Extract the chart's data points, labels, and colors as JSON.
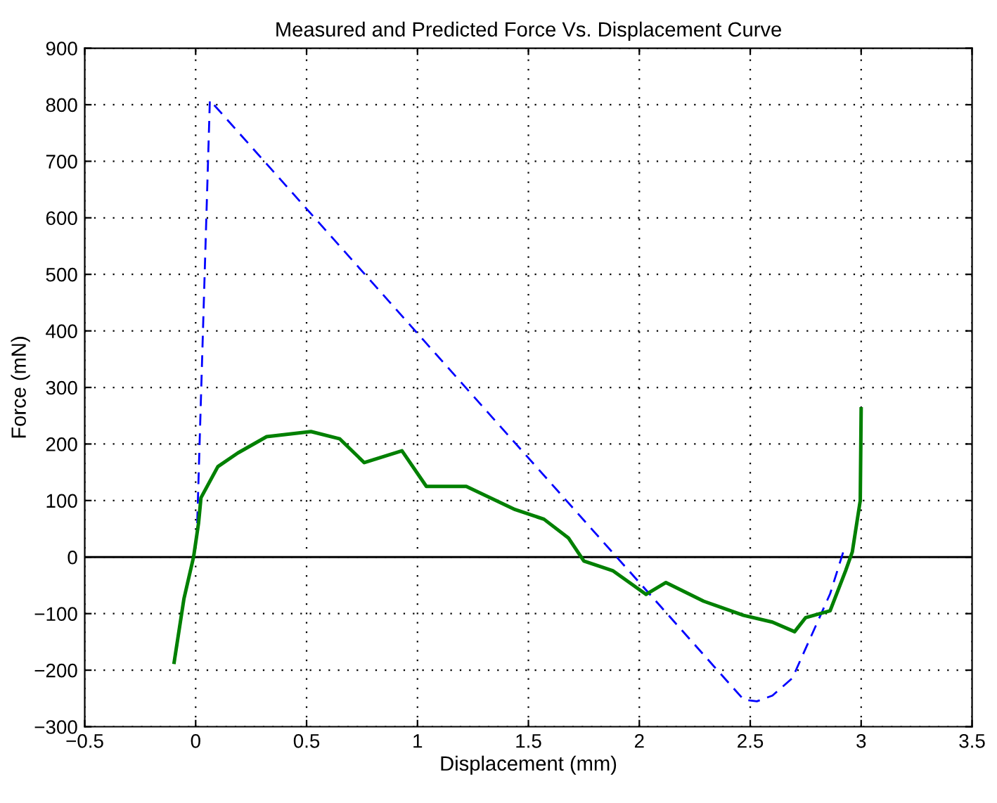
{
  "chart_data": {
    "type": "line",
    "title": "Measured and Predicted Force Vs. Displacement Curve",
    "xlabel": "Displacement (mm)",
    "ylabel": "Force (mN)",
    "series": [
      {
        "color": "#0000ff",
        "line_style": "dashed",
        "x": [
          0.007,
          0.064,
          2.42,
          2.47,
          2.53,
          2.6,
          2.69,
          2.86,
          2.92
        ],
        "values": [
          60,
          808,
          -230,
          -252,
          -255,
          -245,
          -214,
          -65,
          10
        ]
      },
      {
        "color": "#008000",
        "line_style": "solid",
        "x": [
          -0.097,
          -0.053,
          -0.009,
          0.013,
          0.024,
          0.1,
          0.19,
          0.32,
          0.52,
          0.65,
          0.76,
          0.93,
          1.04,
          1.22,
          1.44,
          1.57,
          1.68,
          1.75,
          1.88,
          2.03,
          2.12,
          2.29,
          2.47,
          2.6,
          2.7,
          2.75,
          2.86,
          2.93,
          2.96,
          2.996,
          3.0
        ],
        "values": [
          -186,
          -74,
          1,
          60,
          105,
          160,
          184,
          213,
          222,
          209,
          167,
          188,
          125,
          125,
          84,
          67,
          34,
          -7,
          -24,
          -66,
          -45,
          -78,
          -103,
          -115,
          -132,
          -107,
          -95,
          -24,
          9,
          100,
          262
        ]
      }
    ],
    "xlim": [
      -0.5,
      3.5
    ],
    "xticks": [
      {
        "value": -0.5,
        "label": "−0.5"
      },
      0,
      0.5,
      1,
      1.5,
      2,
      2.5,
      3,
      3.5
    ],
    "ylim": [
      -300,
      900
    ],
    "yticks": [
      {
        "value": -300,
        "label": "−300"
      },
      {
        "value": -200,
        "label": "−200"
      },
      {
        "value": -100,
        "label": "−100"
      },
      0,
      100,
      200,
      300,
      400,
      500,
      600,
      700,
      800,
      900
    ],
    "grid": true,
    "marker": "none",
    "ref_lines": [
      {
        "axis": "y",
        "value": 0,
        "color": "#000000",
        "line_style": "solid"
      }
    ]
  }
}
